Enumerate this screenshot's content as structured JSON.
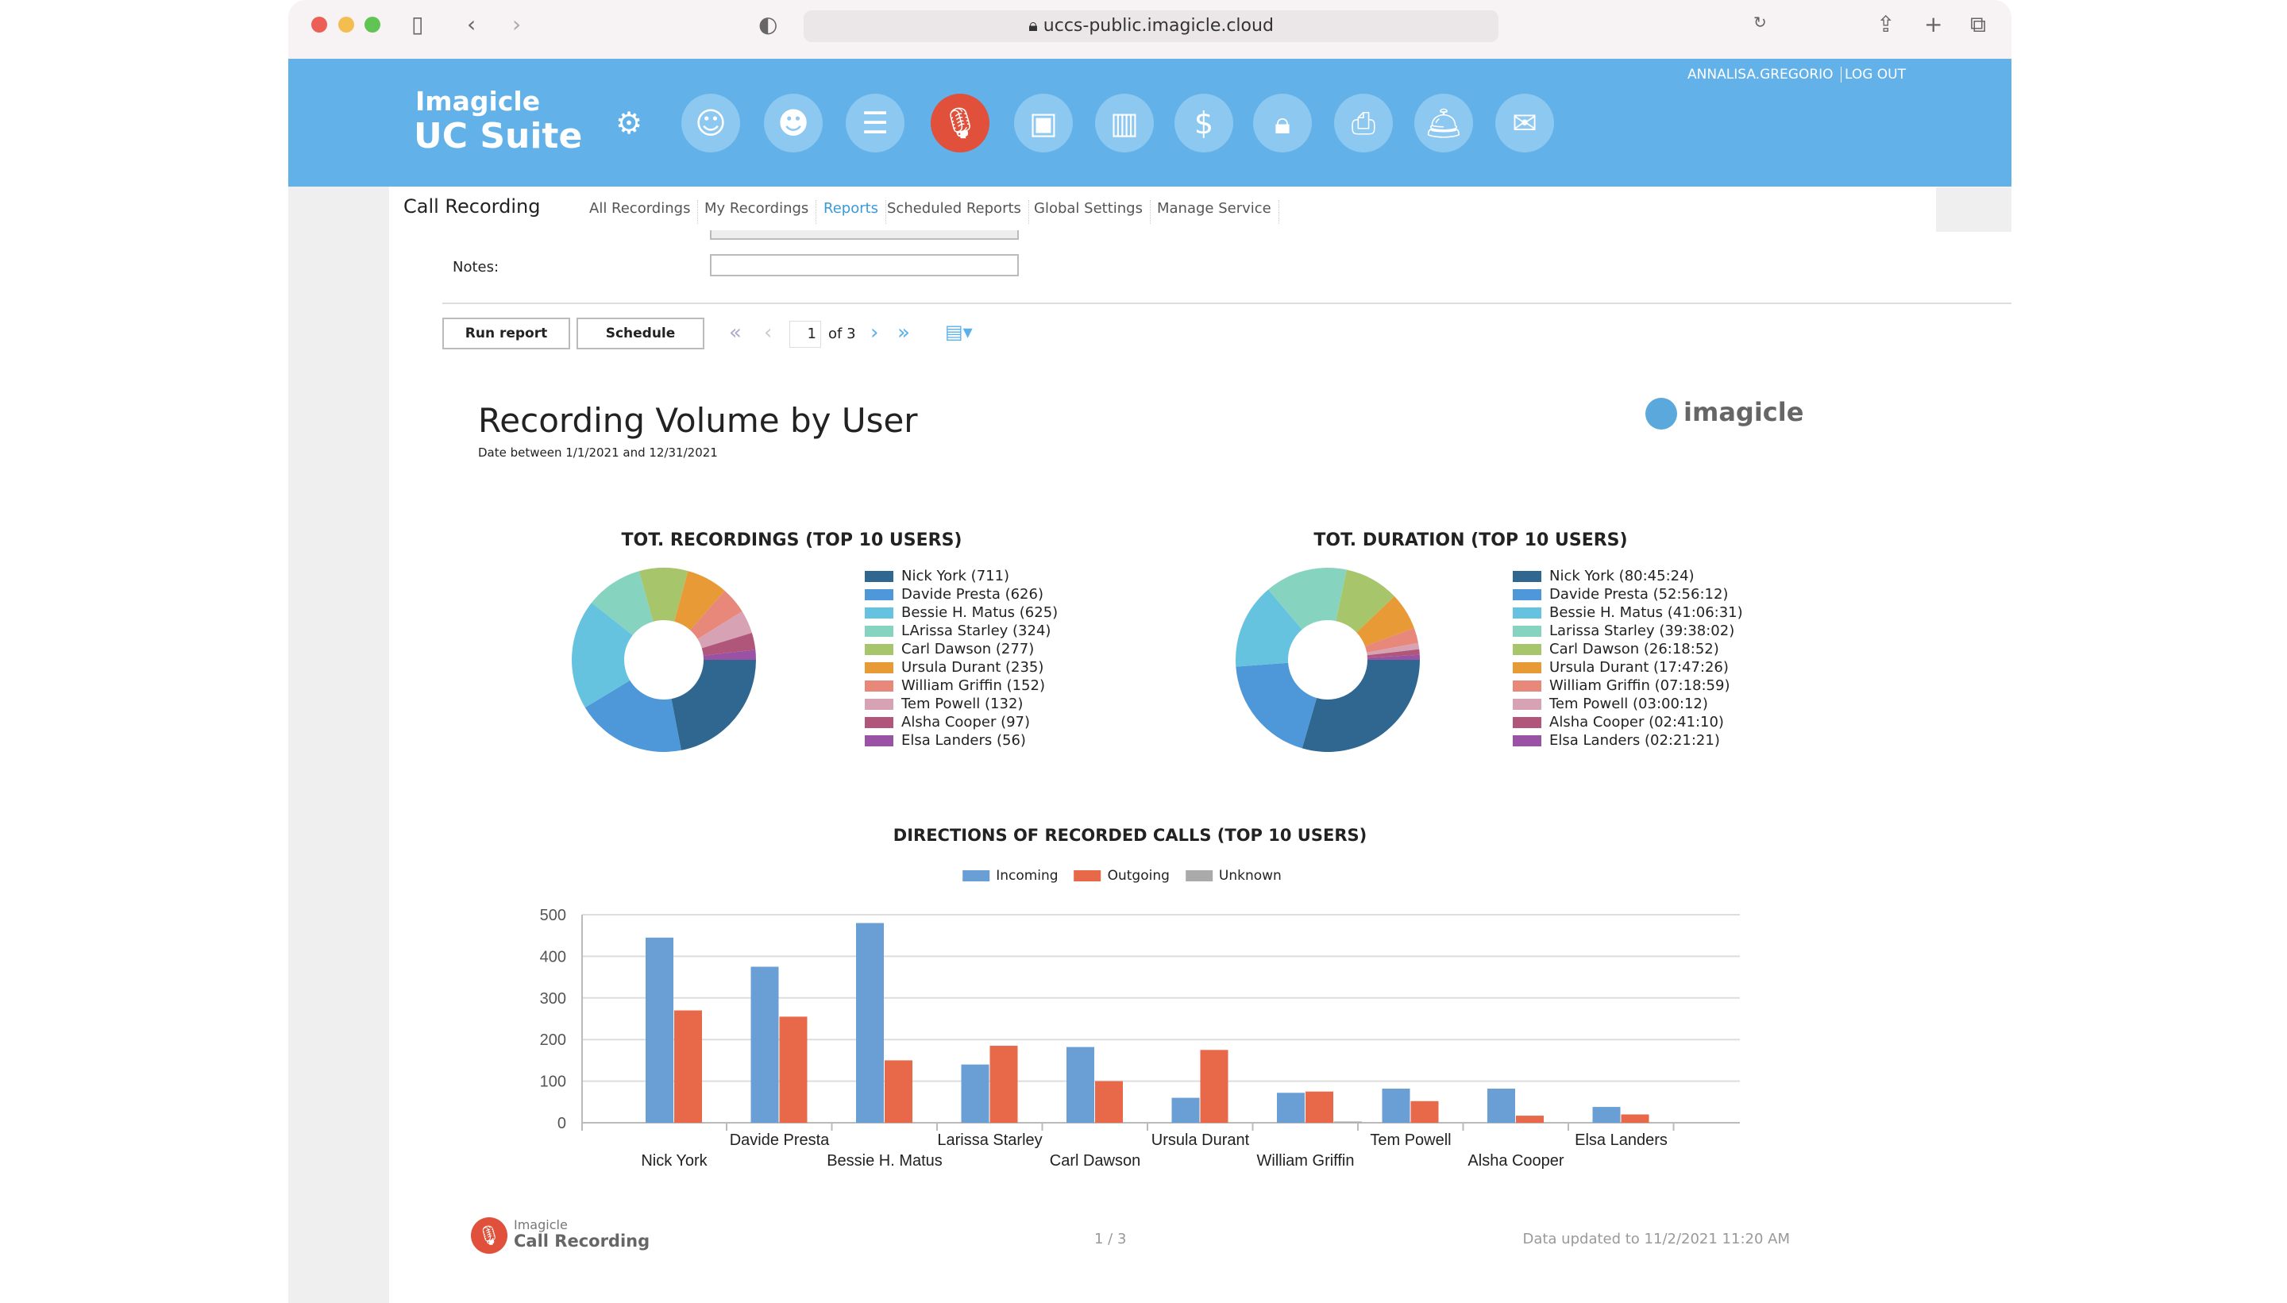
{
  "browser": {
    "url": "uccs-public.imagicle.cloud"
  },
  "header": {
    "logo_line1": "Imagicle",
    "logo_line2": "UC Suite",
    "user": "ANNALISA.GREGORIO",
    "logout": "LOG OUT",
    "icons": [
      "gear-icon",
      "operator-icon",
      "group-icon",
      "directory-icon",
      "microphone-icon",
      "contacts-icon",
      "analytics-icon",
      "billing-icon",
      "lock-icon",
      "fax-icon",
      "concierge-icon",
      "mail-icon"
    ],
    "active_color": "#e0503a"
  },
  "subnav": {
    "title": "Call Recording",
    "items": [
      "All Recordings",
      "My Recordings",
      "Reports",
      "Scheduled Reports",
      "Global Settings",
      "Manage Service"
    ],
    "active": "Reports"
  },
  "form": {
    "notes_label": "Notes:",
    "notes_value": ""
  },
  "toolbar": {
    "run": "Run report",
    "schedule": "Schedule",
    "page": "1",
    "of": "of 3"
  },
  "report": {
    "title": "Recording Volume by User",
    "subtitle": "Date between 1/1/2021 and 12/31/2021",
    "logo": "imagicle"
  },
  "footer": {
    "logo_small": "Imagicle",
    "logo_big": "Call Recording",
    "page": "1 / 3",
    "updated": "Data updated to 11/2/2021 11:20 AM"
  },
  "colors": [
    "#2f6790",
    "#4e97d8",
    "#66c3df",
    "#86d4c0",
    "#a7c66c",
    "#e89a36",
    "#e8887a",
    "#d7a3b4",
    "#b0567a",
    "#9a52a5"
  ],
  "chart_data": [
    {
      "type": "pie",
      "title": "TOT. RECORDINGS (TOP 10 USERS)",
      "labels": [
        "Nick York (711)",
        "Davide Presta (626)",
        "Bessie H. Matus (625)",
        "LArissa Starley (324)",
        "Carl Dawson (277)",
        "Ursula Durant (235)",
        "William Griffin (152)",
        "Tem Powell (132)",
        "Alsha Cooper (97)",
        "Elsa Landers (56)"
      ],
      "values": [
        711,
        626,
        625,
        324,
        277,
        235,
        152,
        132,
        97,
        56
      ]
    },
    {
      "type": "pie",
      "title": "TOT. DURATION (TOP 10 USERS)",
      "labels": [
        "Nick York (80:45:24)",
        "Davide Presta (52:56:12)",
        "Bessie H. Matus (41:06:31)",
        "Larissa Starley (39:38:02)",
        "Carl Dawson (26:18:52)",
        "Ursula Durant (17:47:26)",
        "William Griffin (07:18:59)",
        "Tem Powell (03:00:12)",
        "Alsha Cooper (02:41:10)",
        "Elsa Landers (02:21:21)"
      ],
      "values": [
        "80:45:24",
        "52:56:12",
        "41:06:31",
        "39:38:02",
        "26:18:52",
        "17:47:26",
        "07:18:59",
        "03:00:12",
        "02:41:10",
        "02:21:21"
      ]
    },
    {
      "type": "bar",
      "title": "DIRECTIONS OF RECORDED CALLS (TOP 10 USERS)",
      "categories": [
        "Nick York",
        "Davide Presta",
        "Bessie H. Matus",
        "Larissa Starley",
        "Carl Dawson",
        "Ursula Durant",
        "William Griffin",
        "Tem Powell",
        "Alsha Cooper",
        "Elsa Landers"
      ],
      "series": [
        {
          "name": "Incoming",
          "color": "#6a9fd6",
          "values": [
            445,
            375,
            480,
            140,
            182,
            60,
            72,
            82,
            82,
            38
          ]
        },
        {
          "name": "Outgoing",
          "color": "#e8684a",
          "values": [
            270,
            255,
            150,
            185,
            100,
            175,
            75,
            52,
            17,
            20
          ]
        },
        {
          "name": "Unknown",
          "color": "#aaaaaa",
          "values": [
            0,
            0,
            0,
            0,
            0,
            0,
            3,
            0,
            0,
            0
          ]
        }
      ],
      "yticks": [
        "0",
        "100",
        "200",
        "300",
        "400",
        "500"
      ],
      "ylim": [
        0,
        500
      ],
      "legend": "top"
    }
  ]
}
